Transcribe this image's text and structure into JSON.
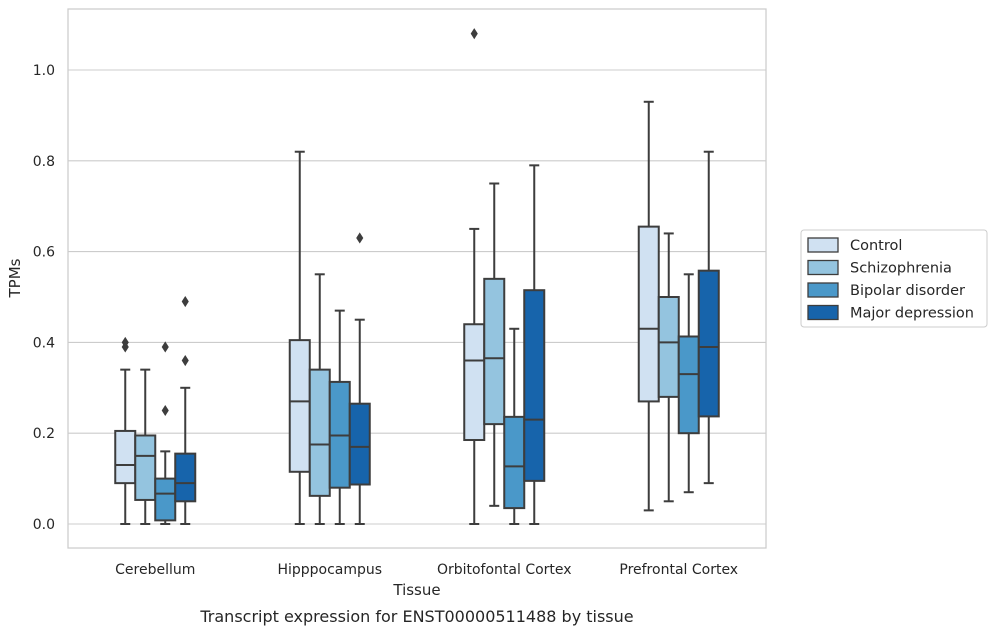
{
  "chart_data": {
    "type": "box",
    "xlabel": "Tissue",
    "ylabel": "TPMs",
    "caption": "Transcript expression for ENST00000511488 by tissue",
    "ylim": [
      -0.05,
      1.14
    ],
    "yticks": [
      0.0,
      0.2,
      0.4,
      0.6,
      0.8,
      1.0
    ],
    "ytick_labels": [
      "0.0",
      "0.2",
      "0.4",
      "0.6",
      "0.8",
      "1.0"
    ],
    "grid": true,
    "legend_position": "right",
    "categories": [
      "Cerebellum",
      "Hipppocampus",
      "Orbitofontal Cortex",
      "Prefrontal Cortex"
    ],
    "series": [
      {
        "name": "Control",
        "color": "#d0e1f2",
        "boxes": [
          {
            "min": 0.0,
            "q1": 0.09,
            "median": 0.13,
            "q3": 0.205,
            "max": 0.34,
            "outliers": [
              0.39,
              0.4
            ]
          },
          {
            "min": 0.0,
            "q1": 0.115,
            "median": 0.27,
            "q3": 0.405,
            "max": 0.82,
            "outliers": []
          },
          {
            "min": 0.0,
            "q1": 0.185,
            "median": 0.36,
            "q3": 0.44,
            "max": 0.65,
            "outliers": [
              1.08
            ]
          },
          {
            "min": 0.03,
            "q1": 0.27,
            "median": 0.43,
            "q3": 0.655,
            "max": 0.93,
            "outliers": []
          }
        ]
      },
      {
        "name": "Schizophrenia",
        "color": "#94c4df",
        "boxes": [
          {
            "min": 0.0,
            "q1": 0.053,
            "median": 0.15,
            "q3": 0.195,
            "max": 0.34,
            "outliers": []
          },
          {
            "min": 0.0,
            "q1": 0.062,
            "median": 0.175,
            "q3": 0.34,
            "max": 0.55,
            "outliers": []
          },
          {
            "min": 0.04,
            "q1": 0.22,
            "median": 0.365,
            "q3": 0.54,
            "max": 0.75,
            "outliers": []
          },
          {
            "min": 0.05,
            "q1": 0.28,
            "median": 0.4,
            "q3": 0.5,
            "max": 0.64,
            "outliers": []
          }
        ]
      },
      {
        "name": "Bipolar disorder",
        "color": "#4a98c9",
        "boxes": [
          {
            "min": 0.0,
            "q1": 0.008,
            "median": 0.067,
            "q3": 0.1,
            "max": 0.16,
            "outliers": [
              0.25,
              0.39
            ]
          },
          {
            "min": 0.0,
            "q1": 0.08,
            "median": 0.195,
            "q3": 0.313,
            "max": 0.47,
            "outliers": []
          },
          {
            "min": 0.0,
            "q1": 0.035,
            "median": 0.127,
            "q3": 0.236,
            "max": 0.43,
            "outliers": []
          },
          {
            "min": 0.07,
            "q1": 0.2,
            "median": 0.33,
            "q3": 0.413,
            "max": 0.55,
            "outliers": []
          }
        ]
      },
      {
        "name": "Major depression",
        "color": "#1764ab",
        "boxes": [
          {
            "min": 0.0,
            "q1": 0.05,
            "median": 0.09,
            "q3": 0.155,
            "max": 0.3,
            "outliers": [
              0.36,
              0.49
            ]
          },
          {
            "min": 0.0,
            "q1": 0.087,
            "median": 0.17,
            "q3": 0.265,
            "max": 0.45,
            "outliers": [
              0.63
            ]
          },
          {
            "min": 0.0,
            "q1": 0.095,
            "median": 0.23,
            "q3": 0.515,
            "max": 0.79,
            "outliers": []
          },
          {
            "min": 0.09,
            "q1": 0.237,
            "median": 0.39,
            "q3": 0.558,
            "max": 0.82,
            "outliers": []
          }
        ]
      }
    ]
  },
  "colors": {
    "grid": "#cccccc",
    "frame": "#cccccc",
    "line": "#3d3d3d",
    "text": "#262626"
  }
}
